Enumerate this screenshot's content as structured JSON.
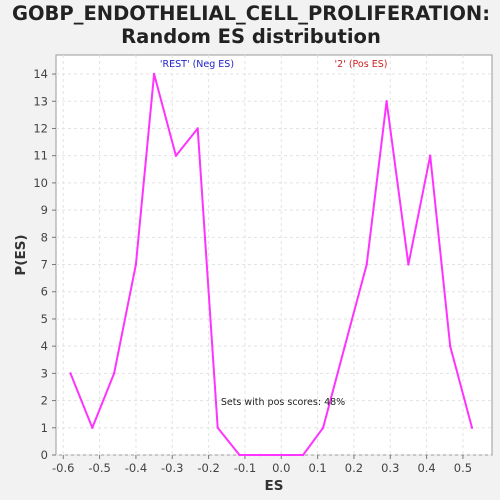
{
  "chart_data": {
    "type": "line",
    "title_line1": "GOBP_ENDOTHELIAL_CELL_PROLIFERATION:",
    "title_line2": "Random ES distribution",
    "xlabel": "ES",
    "ylabel": "P(ES)",
    "xlim": [
      -0.62,
      0.58
    ],
    "ylim": [
      0,
      14.7
    ],
    "x_ticks": [
      "-0.6",
      "-0.5",
      "-0.4",
      "-0.3",
      "-0.2",
      "-0.1",
      "0.0",
      "0.1",
      "0.2",
      "0.3",
      "0.4",
      "0.5"
    ],
    "y_ticks": [
      "0",
      "1",
      "2",
      "3",
      "4",
      "5",
      "6",
      "7",
      "8",
      "9",
      "10",
      "11",
      "12",
      "13",
      "14"
    ],
    "grid": true,
    "series": [
      {
        "color": "#ff33ff",
        "x": [
          -0.58,
          -0.52,
          -0.46,
          -0.4,
          -0.35,
          -0.29,
          -0.23,
          -0.175,
          -0.115,
          -0.06,
          0.0,
          0.06,
          0.115,
          0.175,
          0.235,
          0.29,
          0.35,
          0.41,
          0.465,
          0.525
        ],
        "y": [
          3,
          1,
          3,
          7,
          14,
          11,
          12,
          1,
          0,
          0,
          0,
          0,
          1,
          4,
          7,
          13,
          7,
          11,
          4,
          1
        ]
      }
    ],
    "annotations": [
      {
        "text": "'REST' (Neg ES)",
        "color": "#2222cc"
      },
      {
        "text": "'2' (Pos ES)",
        "color": "#cc2222"
      },
      {
        "text": "Sets with pos scores: 48%",
        "color": "#222222"
      }
    ]
  }
}
